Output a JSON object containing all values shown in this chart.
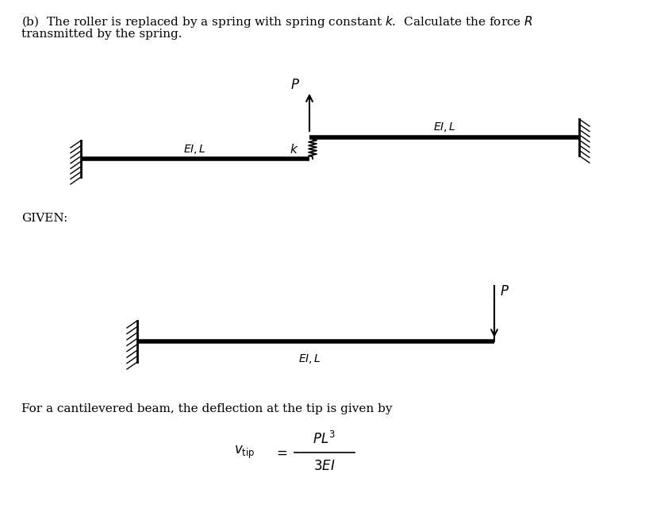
{
  "header_text": "(b)  The roller is replaced by a spring with spring constant k.  Calculate the force R",
  "header_line2": "transmitted by the spring.",
  "given_label": "GIVEN:",
  "for_text": "For a cantilevered beam, the deflection at the tip is given by",
  "label_EI_L": "EI, L",
  "label_k": "k",
  "label_P_top": "P",
  "label_P_given": "P",
  "bg_color": "#ffffff",
  "beam_color": "#000000",
  "beam_lw": 4.0,
  "font_size_main": 11,
  "font_size_label": 11
}
